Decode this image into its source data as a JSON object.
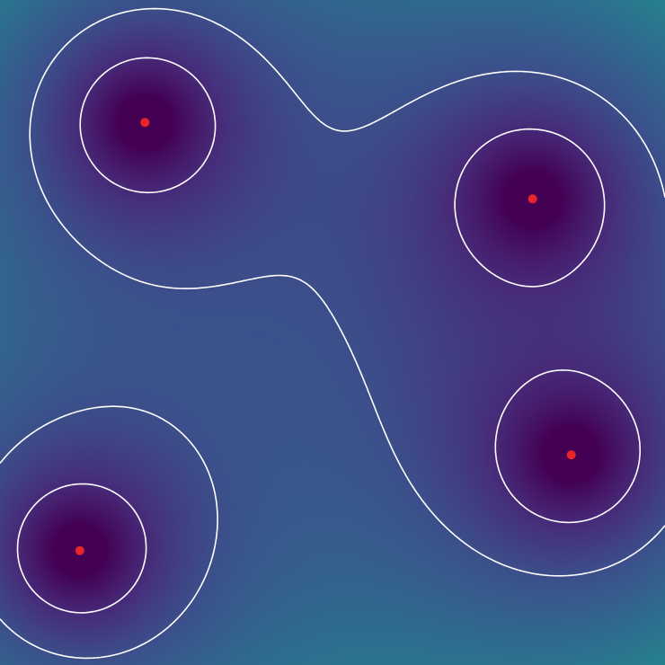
{
  "chart_data": {
    "type": "heatmap",
    "title": "",
    "xlabel": "",
    "ylabel": "",
    "xlim": [
      0,
      1
    ],
    "ylim": [
      0,
      1
    ],
    "grid": false,
    "legend": "none",
    "colormap": "viridis",
    "contour_color": "#ffffff",
    "point_color": "#e8262a",
    "sources": [
      {
        "x": 0.218,
        "y": 0.816
      },
      {
        "x": 0.801,
        "y": 0.701
      },
      {
        "x": 0.859,
        "y": 0.316
      },
      {
        "x": 0.12,
        "y": 0.172
      }
    ],
    "field_range": [
      0.0,
      1.0
    ],
    "contour_levels": [
      0.12,
      0.24,
      0.68
    ]
  }
}
